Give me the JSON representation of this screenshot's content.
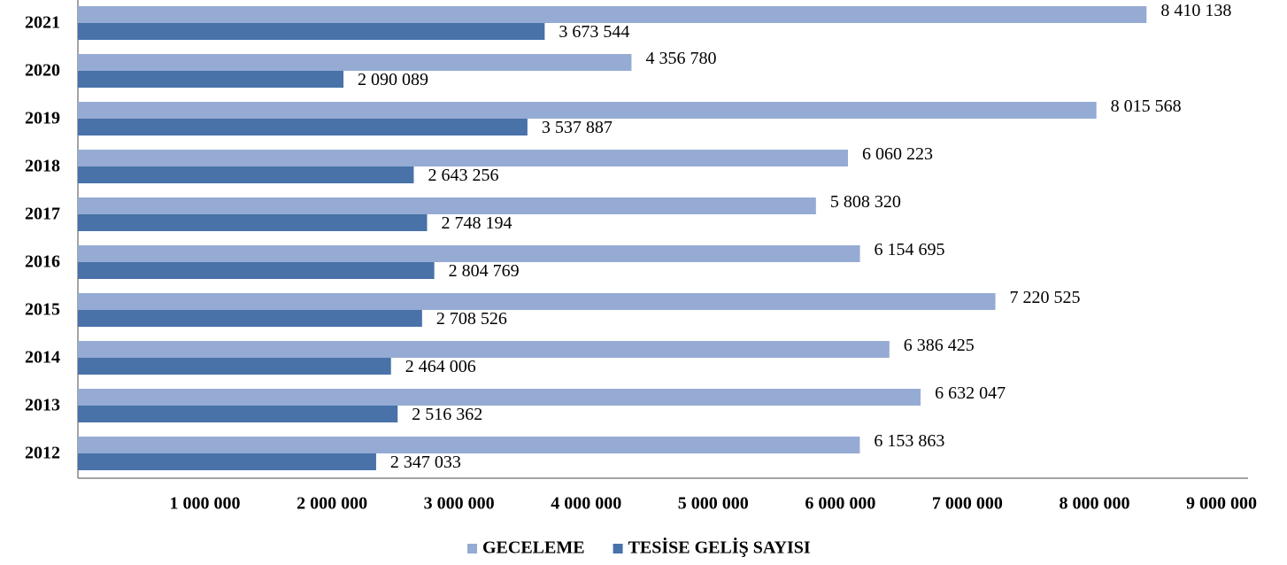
{
  "chart_data": {
    "type": "bar",
    "orientation": "horizontal",
    "categories": [
      "2021",
      "2020",
      "2019",
      "2018",
      "2017",
      "2016",
      "2015",
      "2014",
      "2013",
      "2012"
    ],
    "series": [
      {
        "name": "GECELEME",
        "color": "#95abd4",
        "values": [
          8410138,
          4356780,
          8015568,
          6060223,
          5808320,
          6154695,
          7220525,
          6386425,
          6632047,
          6153863
        ],
        "value_labels": [
          "8 410 138",
          "4 356 780",
          "8 015 568",
          "6 060 223",
          "5 808 320",
          "6 154 695",
          "7 220 525",
          "6 386 425",
          "6 632 047",
          "6 153 863"
        ]
      },
      {
        "name": "TESİSE GELİŞ SAYISI",
        "color": "#4872a8",
        "values": [
          3673544,
          2090089,
          3537887,
          2643256,
          2748194,
          2804769,
          2708526,
          2464006,
          2516362,
          2347033
        ],
        "value_labels": [
          "3 673 544",
          "2 090 089",
          "3 537 887",
          "2 643 256",
          "2 748 194",
          "2 804 769",
          "2 708 526",
          "2 464 006",
          "2 516 362",
          "2 347 033"
        ]
      }
    ],
    "xlim": [
      0,
      9000000
    ],
    "xticks": [
      {
        "value": 1000000,
        "label": "1 000 000"
      },
      {
        "value": 2000000,
        "label": "2 000 000"
      },
      {
        "value": 3000000,
        "label": "3 000 000"
      },
      {
        "value": 4000000,
        "label": "4 000 000"
      },
      {
        "value": 5000000,
        "label": "5 000 000"
      },
      {
        "value": 6000000,
        "label": "6 000 000"
      },
      {
        "value": 7000000,
        "label": "7 000 000"
      },
      {
        "value": 8000000,
        "label": "8 000 000"
      },
      {
        "value": 9000000,
        "label": "9 000 000"
      }
    ],
    "grid": false,
    "legend": "bottom"
  }
}
